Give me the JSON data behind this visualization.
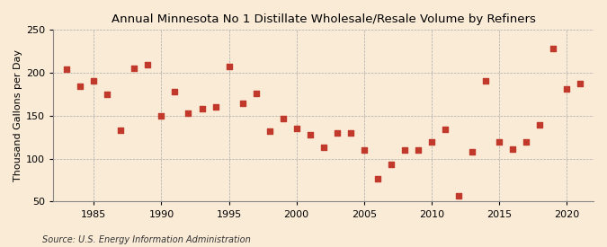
{
  "title": "Annual Minnesota No 1 Distillate Wholesale/Resale Volume by Refiners",
  "ylabel": "Thousand Gallons per Day",
  "source": "Source: U.S. Energy Information Administration",
  "background_color": "#faebd7",
  "axes_facecolor": "#faebd7",
  "marker_color": "#c0392b",
  "years": [
    1983,
    1984,
    1985,
    1986,
    1987,
    1988,
    1989,
    1990,
    1991,
    1992,
    1993,
    1994,
    1995,
    1996,
    1997,
    1998,
    1999,
    2000,
    2001,
    2002,
    2003,
    2004,
    2005,
    2006,
    2007,
    2008,
    2009,
    2010,
    2011,
    2012,
    2013,
    2014,
    2015,
    2016,
    2017,
    2018,
    2019,
    2020,
    2021
  ],
  "values": [
    204,
    184,
    191,
    175,
    133,
    205,
    210,
    150,
    178,
    153,
    158,
    160,
    207,
    165,
    176,
    132,
    147,
    135,
    128,
    113,
    130,
    130,
    110,
    77,
    93,
    110,
    110,
    120,
    134,
    57,
    108,
    191,
    120,
    111,
    120,
    139,
    228,
    181,
    188
  ],
  "ylim": [
    50,
    250
  ],
  "xlim": [
    1982,
    2022
  ],
  "yticks": [
    50,
    100,
    150,
    200,
    250
  ],
  "xticks": [
    1985,
    1990,
    1995,
    2000,
    2005,
    2010,
    2015,
    2020
  ],
  "title_fontsize": 9.5,
  "label_fontsize": 8,
  "tick_fontsize": 8,
  "source_fontsize": 7
}
